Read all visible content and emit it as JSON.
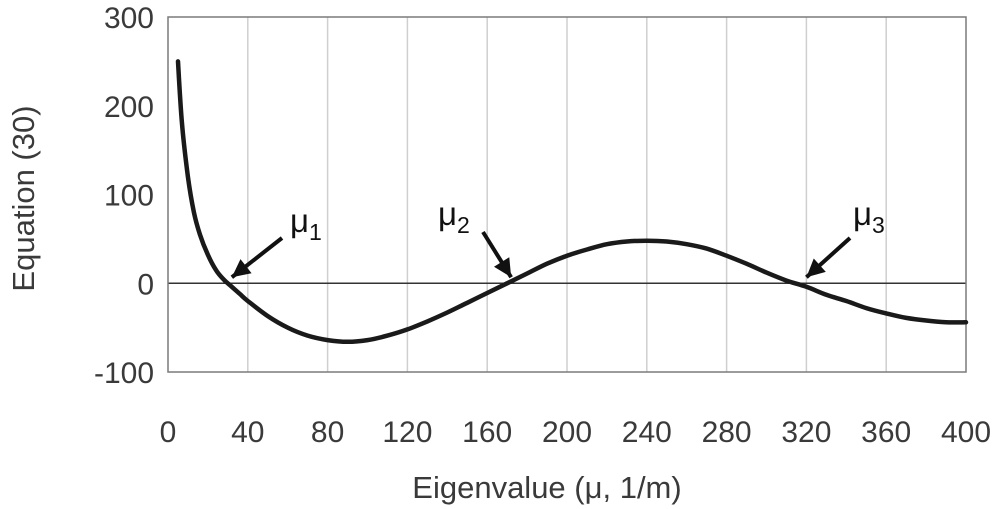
{
  "chart_data": {
    "type": "line",
    "title": "",
    "xlabel": "Eigenvalue (μ, 1/m)",
    "ylabel": "Equation (30)",
    "xlim": [
      0,
      400
    ],
    "ylim": [
      -100,
      300
    ],
    "x_ticks": [
      0,
      40,
      80,
      120,
      160,
      200,
      240,
      280,
      320,
      360,
      400
    ],
    "y_ticks": [
      -100,
      0,
      100,
      200,
      300
    ],
    "x_tick_labels": [
      "0",
      "40",
      "80",
      "120",
      "160",
      "200",
      "240",
      "280",
      "320",
      "360",
      "400"
    ],
    "y_tick_labels": [
      "-100",
      "0",
      "100",
      "200",
      "300"
    ],
    "grid": {
      "vertical": true,
      "horizontal": false
    },
    "legend": "none",
    "line_color": "#1a1a1a",
    "series": [
      {
        "x": [
          5,
          7,
          10,
          13,
          16,
          20,
          24,
          28,
          32,
          36,
          40,
          50,
          60,
          70,
          80,
          90,
          100,
          110,
          120,
          130,
          140,
          150,
          160,
          170,
          180,
          190,
          200,
          210,
          220,
          230,
          240,
          250,
          260,
          270,
          280,
          290,
          300,
          310,
          320,
          330,
          340,
          350,
          360,
          370,
          380,
          390,
          400
        ],
        "y": [
          250,
          180,
          120,
          80,
          55,
          32,
          15,
          4,
          -4,
          -12,
          -20,
          -37,
          -50,
          -59,
          -64,
          -66,
          -64,
          -59,
          -52,
          -43,
          -33,
          -22,
          -11,
          0,
          11,
          22,
          31,
          38,
          44,
          47,
          48,
          47,
          44,
          39,
          31,
          22,
          12,
          3,
          -4,
          -13,
          -20,
          -28,
          -34,
          -39,
          -42,
          -44,
          -44
        ]
      }
    ],
    "annotations": [
      {
        "base": "μ",
        "sub": "1",
        "points_to": {
          "x": 30,
          "y": 0
        }
      },
      {
        "base": "μ",
        "sub": "2",
        "points_to": {
          "x": 170,
          "y": 0
        }
      },
      {
        "base": "μ",
        "sub": "3",
        "points_to": {
          "x": 318,
          "y": 0
        }
      }
    ]
  }
}
